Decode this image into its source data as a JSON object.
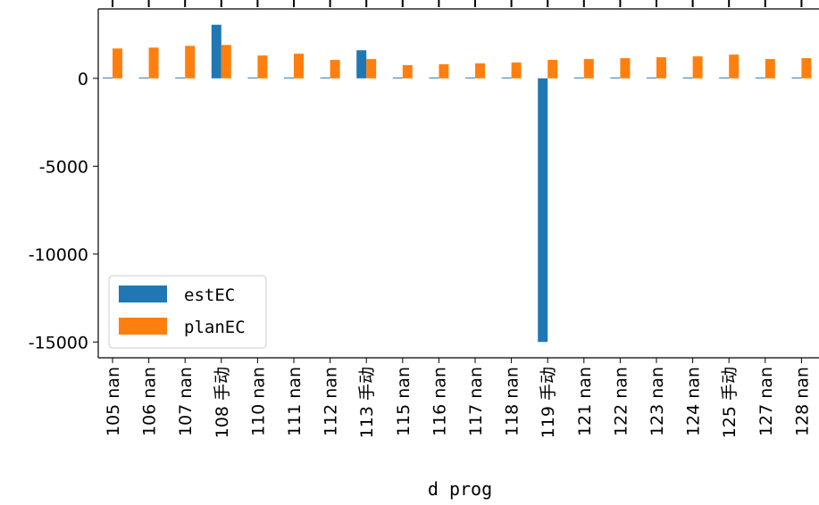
{
  "chart_data": {
    "type": "bar",
    "xlabel": "d prog",
    "ylabel": "",
    "ylim": [
      -15900,
      3950
    ],
    "yticks": [
      0,
      -5000,
      -10000,
      -15000
    ],
    "ytick_labels": [
      "0",
      "-5000",
      "-10000",
      "-15000"
    ],
    "categories": [
      "105 nan",
      "106 nan",
      "107 nan",
      "108 手动",
      "110 nan",
      "111 nan",
      "112 nan",
      "113 手动",
      "115 nan",
      "116 nan",
      "117 nan",
      "118 nan",
      "119 手动",
      "121 nan",
      "122 nan",
      "123 nan",
      "124 nan",
      "125 手动",
      "127 nan",
      "128 nan"
    ],
    "series": [
      {
        "name": "estEC",
        "color": "#1f77b4",
        "values": [
          50,
          50,
          50,
          3050,
          50,
          50,
          50,
          1600,
          50,
          50,
          50,
          50,
          -15000,
          50,
          50,
          50,
          50,
          50,
          50,
          50
        ]
      },
      {
        "name": "planEC",
        "color": "#ff7f0e",
        "values": [
          1700,
          1750,
          1850,
          1900,
          1300,
          1400,
          1050,
          1100,
          750,
          800,
          850,
          900,
          1050,
          1100,
          1150,
          1200,
          1250,
          1350,
          1100,
          1150
        ]
      }
    ],
    "legend_position": "lower-left",
    "grid": false
  }
}
